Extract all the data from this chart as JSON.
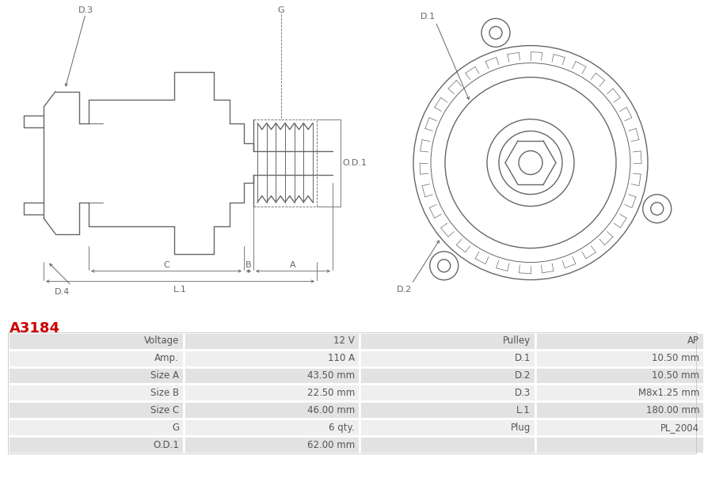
{
  "title": "A3184",
  "title_color": "#cc0000",
  "bg_color": "#ffffff",
  "table_row_bg1": "#e2e2e2",
  "table_row_bg2": "#efefef",
  "table_border_color": "#ffffff",
  "rows": [
    [
      "Voltage",
      "12 V",
      "Pulley",
      "AP"
    ],
    [
      "Amp.",
      "110 A",
      "D.1",
      "10.50 mm"
    ],
    [
      "Size A",
      "43.50 mm",
      "D.2",
      "10.50 mm"
    ],
    [
      "Size B",
      "22.50 mm",
      "D.3",
      "M8x1.25 mm"
    ],
    [
      "Size C",
      "46.00 mm",
      "L.1",
      "180.00 mm"
    ],
    [
      "G",
      "6 qty.",
      "Plug",
      "PL_2004"
    ],
    [
      "O.D.1",
      "62.00 mm",
      "",
      ""
    ]
  ],
  "diagram_line_color": "#666666",
  "font_size_table": 8.5,
  "font_size_label": 8.0
}
